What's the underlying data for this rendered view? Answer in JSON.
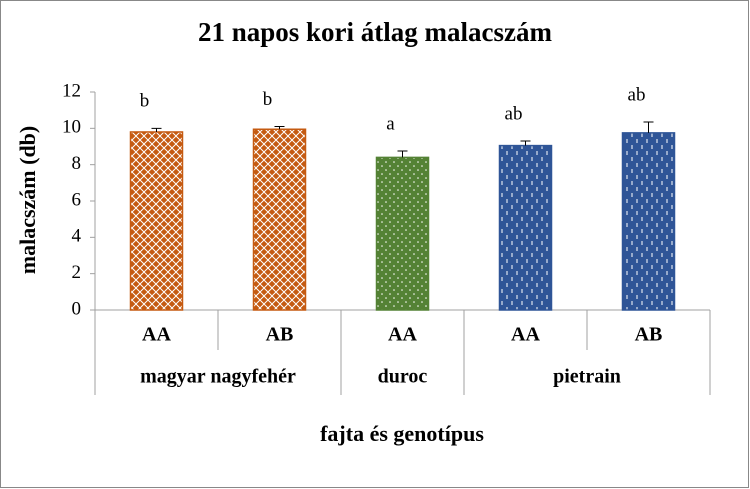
{
  "chart_data": {
    "type": "bar",
    "title": "21 napos kori átlag malacszám",
    "y_label": "malacszám (db)",
    "x_label": "fajta és genotípus",
    "groups": [
      {
        "name": "magyar nagyfehér",
        "categories": [
          "AA",
          "AB"
        ]
      },
      {
        "name": "duroc",
        "categories": [
          "AA"
        ]
      },
      {
        "name": "pietrain",
        "categories": [
          "AA",
          "AB"
        ]
      }
    ],
    "values": [
      9.8,
      9.95,
      8.4,
      9.05,
      9.75
    ],
    "errors": [
      0.2,
      0.15,
      0.35,
      0.25,
      0.6
    ],
    "letters": [
      "b",
      "b",
      "a",
      "ab",
      "ab"
    ],
    "colors": [
      "#c55a11",
      "#c55a11",
      "#548235",
      "#2f5597",
      "#2f5597"
    ],
    "patterns": [
      "lattice",
      "lattice",
      "dots",
      "dashes",
      "dashes"
    ],
    "ylim": [
      0,
      12
    ],
    "yticks": [
      0,
      2,
      4,
      6,
      8,
      10,
      12
    ],
    "grid": false
  }
}
